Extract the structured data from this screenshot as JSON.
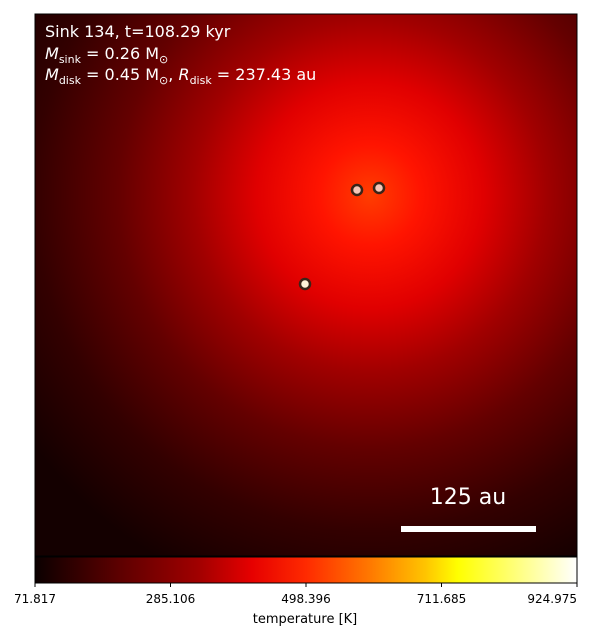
{
  "panel": {
    "title_line1": "Sink 134, t=108.29 kyr",
    "mass_sink_symbol": "M",
    "mass_sink_sub": "sink",
    "mass_sink_value": " = 0.26 M",
    "mass_sink_unit_sub": "⊙",
    "disk_mass_symbol": "M",
    "disk_mass_sub": "disk",
    "disk_mass_value": " = 0.45 M",
    "disk_mass_unit_sub": "⊙",
    "disk_radius_sep": ", ",
    "disk_radius_symbol": "R",
    "disk_radius_sub": "disk",
    "disk_radius_value": " = 237.43 au",
    "scalebar_label": "125 au"
  },
  "sinks": [
    {
      "name": "sink-left"
    },
    {
      "name": "sink-right"
    },
    {
      "name": "sink-center"
    }
  ],
  "colorbar": {
    "label": "temperature [K]",
    "ticks": [
      "71.817",
      "285.106",
      "498.396",
      "711.685",
      "924.975"
    ],
    "min": 71.817,
    "max": 924.975,
    "colormap": [
      "#000000",
      "#8b0000",
      "#ff0000",
      "#ff8c00",
      "#ffff00",
      "#ffffff"
    ]
  },
  "colors": {
    "panel_text": "#ffffff",
    "sink_fill": "#f5c6b8",
    "sink_edge": "#3a2418",
    "scalebar": "#ffffff",
    "frame": "#000000"
  }
}
